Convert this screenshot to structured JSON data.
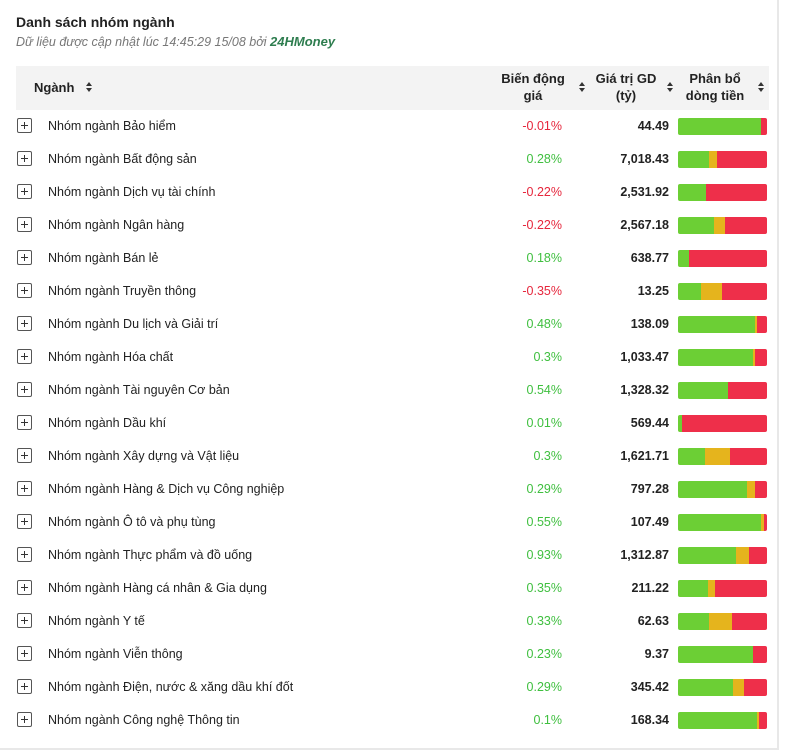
{
  "header": {
    "title": "Danh sách nhóm ngành",
    "subtitle_prefix": "Dữ liệu được cập nhật lúc 14:45:29 15/08 bởi",
    "brand": "24HMoney"
  },
  "columns": {
    "sector": "Ngành",
    "change_line1": "Biến động",
    "change_line2": "giá",
    "value_line1": "Giá trị GD",
    "value_line2": "(tỷ)",
    "flow_line1": "Phân bổ",
    "flow_line2": "dòng tiền"
  },
  "colors": {
    "increase": "#6ccf35",
    "unchanged": "#e5b41d",
    "decrease": "#ee2f4a",
    "positive_text": "#3fbf3f",
    "negative_text": "#e6263c"
  },
  "rows": [
    {
      "name": "Nhóm ngành Bảo hiểm",
      "change": "-0.01%",
      "direction": "neg",
      "value": "44.49",
      "flow": [
        0.93,
        0.0,
        0.07
      ]
    },
    {
      "name": "Nhóm ngành Bất động sản",
      "change": "0.28%",
      "direction": "pos",
      "value": "7,018.43",
      "flow": [
        0.35,
        0.09,
        0.56
      ]
    },
    {
      "name": "Nhóm ngành Dịch vụ tài chính",
      "change": "-0.22%",
      "direction": "neg",
      "value": "2,531.92",
      "flow": [
        0.31,
        0.0,
        0.69
      ]
    },
    {
      "name": "Nhóm ngành Ngân hàng",
      "change": "-0.22%",
      "direction": "neg",
      "value": "2,567.18",
      "flow": [
        0.41,
        0.12,
        0.47
      ]
    },
    {
      "name": "Nhóm ngành Bán lẻ",
      "change": "0.18%",
      "direction": "pos",
      "value": "638.77",
      "flow": [
        0.12,
        0.0,
        0.88
      ]
    },
    {
      "name": "Nhóm ngành Truyền thông",
      "change": "-0.35%",
      "direction": "neg",
      "value": "13.25",
      "flow": [
        0.26,
        0.23,
        0.51
      ]
    },
    {
      "name": "Nhóm ngành Du lịch và Giải trí",
      "change": "0.48%",
      "direction": "pos",
      "value": "138.09",
      "flow": [
        0.86,
        0.03,
        0.11
      ]
    },
    {
      "name": "Nhóm ngành Hóa chất",
      "change": "0.3%",
      "direction": "pos",
      "value": "1,033.47",
      "flow": [
        0.84,
        0.02,
        0.14
      ]
    },
    {
      "name": "Nhóm ngành Tài nguyên Cơ bản",
      "change": "0.54%",
      "direction": "pos",
      "value": "1,328.32",
      "flow": [
        0.56,
        0.0,
        0.44
      ]
    },
    {
      "name": "Nhóm ngành Dầu khí",
      "change": "0.01%",
      "direction": "pos",
      "value": "569.44",
      "flow": [
        0.04,
        0.0,
        0.96
      ]
    },
    {
      "name": "Nhóm ngành Xây dựng và Vật liệu",
      "change": "0.3%",
      "direction": "pos",
      "value": "1,621.71",
      "flow": [
        0.3,
        0.29,
        0.41
      ]
    },
    {
      "name": "Nhóm ngành Hàng & Dịch vụ Công nghiệp",
      "change": "0.29%",
      "direction": "pos",
      "value": "797.28",
      "flow": [
        0.77,
        0.1,
        0.13
      ]
    },
    {
      "name": "Nhóm ngành Ô tô và phụ tùng",
      "change": "0.55%",
      "direction": "pos",
      "value": "107.49",
      "flow": [
        0.93,
        0.04,
        0.03
      ]
    },
    {
      "name": "Nhóm ngành Thực phẩm và đồ uống",
      "change": "0.93%",
      "direction": "pos",
      "value": "1,312.87",
      "flow": [
        0.65,
        0.15,
        0.2
      ]
    },
    {
      "name": "Nhóm ngành Hàng cá nhân & Gia dụng",
      "change": "0.35%",
      "direction": "pos",
      "value": "211.22",
      "flow": [
        0.34,
        0.08,
        0.58
      ]
    },
    {
      "name": "Nhóm ngành Y tế",
      "change": "0.33%",
      "direction": "pos",
      "value": "62.63",
      "flow": [
        0.35,
        0.26,
        0.39
      ]
    },
    {
      "name": "Nhóm ngành Viễn thông",
      "change": "0.23%",
      "direction": "pos",
      "value": "9.37",
      "flow": [
        0.84,
        0.0,
        0.16
      ]
    },
    {
      "name": "Nhóm ngành Điện, nước & xăng dầu khí đốt",
      "change": "0.29%",
      "direction": "pos",
      "value": "345.42",
      "flow": [
        0.62,
        0.12,
        0.26
      ]
    },
    {
      "name": "Nhóm ngành Công nghệ Thông tin",
      "change": "0.1%",
      "direction": "pos",
      "value": "168.34",
      "flow": [
        0.89,
        0.02,
        0.09
      ]
    }
  ]
}
